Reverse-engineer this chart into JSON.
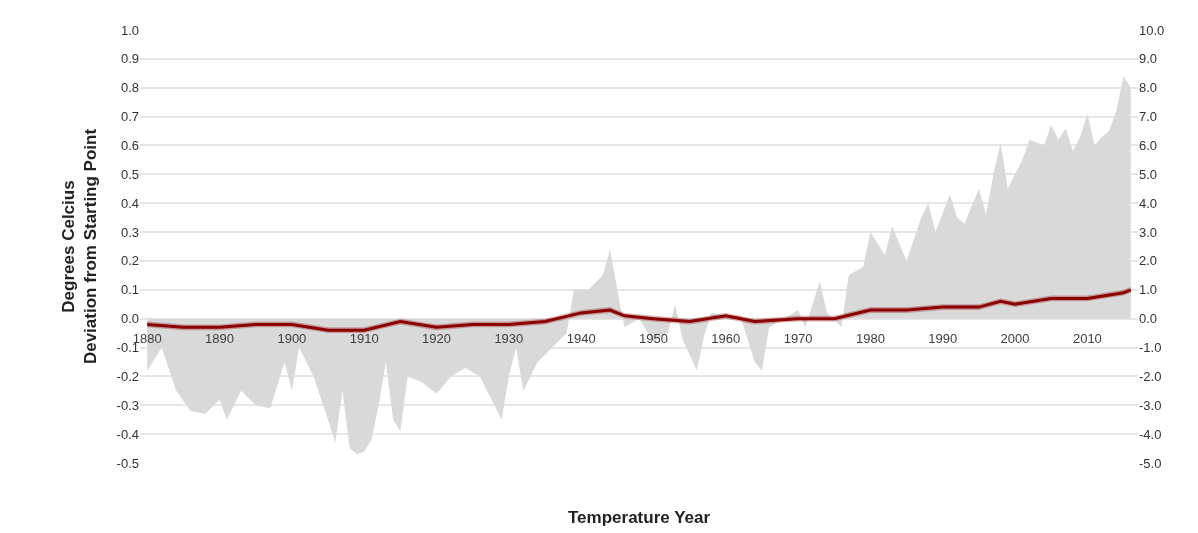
{
  "chart_data": {
    "type": "line",
    "xlabel": "Temperature Year",
    "ylabel": "Degrees Celcius\nDeviation from Starting Point",
    "xlim": [
      1879,
      2017
    ],
    "xticks": [
      1880,
      1890,
      1900,
      1910,
      1920,
      1930,
      1940,
      1950,
      1960,
      1970,
      1980,
      1990,
      2000,
      2010
    ],
    "ylim": [
      -0.5,
      1.0
    ],
    "yticks": [
      {
        "value": -0.5,
        "label": "-0.5"
      },
      {
        "value": -0.4,
        "label": "-0.4"
      },
      {
        "value": -0.3,
        "label": "-0.3"
      },
      {
        "value": -0.2,
        "label": "-0.2"
      },
      {
        "value": -0.1,
        "label": "-0.1"
      },
      {
        "value": 0,
        "label": "0.0"
      },
      {
        "value": 0.1,
        "label": "0.1"
      },
      {
        "value": 0.2,
        "label": "0.2"
      },
      {
        "value": 0.3,
        "label": "0.3"
      },
      {
        "value": 0.4,
        "label": "0.4"
      },
      {
        "value": 0.5,
        "label": "0.5"
      },
      {
        "value": 0.6,
        "label": "0.6"
      },
      {
        "value": 0.7,
        "label": "0.7"
      },
      {
        "value": 0.8,
        "label": "0.8"
      },
      {
        "value": 0.9,
        "label": "0.9"
      },
      {
        "value": 1.0,
        "label": "1.0"
      }
    ],
    "y2lim": [
      -5,
      10
    ],
    "y2ticks": [
      {
        "value": -5,
        "label": "-5.0"
      },
      {
        "value": -4,
        "label": "-4.0"
      },
      {
        "value": -3,
        "label": "-3.0"
      },
      {
        "value": -2,
        "label": "-2.0"
      },
      {
        "value": -1,
        "label": "-1.0"
      },
      {
        "value": 0,
        "label": "0.0"
      },
      {
        "value": 1,
        "label": "1.0"
      },
      {
        "value": 2,
        "label": "2.0"
      },
      {
        "value": 3,
        "label": "3.0"
      },
      {
        "value": 4,
        "label": "4.0"
      },
      {
        "value": 5,
        "label": "5.0"
      },
      {
        "value": 6,
        "label": "6.0"
      },
      {
        "value": 7,
        "label": "7.0"
      },
      {
        "value": 8,
        "label": "8.0"
      },
      {
        "value": 9,
        "label": "9.0"
      },
      {
        "value": 10,
        "label": "10.0"
      }
    ],
    "grid": "y",
    "marker": "none",
    "line_style": "solid",
    "series": [
      {
        "type": "area",
        "axis": "y2",
        "color": "#d9d9d9",
        "x": [
          1880,
          1882,
          1884,
          1886,
          1888,
          1890,
          1891,
          1893,
          1895,
          1897,
          1899,
          1900,
          1901,
          1903,
          1905,
          1906,
          1907,
          1908,
          1909,
          1910,
          1911,
          1912,
          1913,
          1914,
          1915,
          1916,
          1918,
          1920,
          1922,
          1924,
          1926,
          1928,
          1929,
          1930,
          1931,
          1932,
          1934,
          1936,
          1938,
          1939,
          1941,
          1943,
          1944,
          1945,
          1946,
          1948,
          1950,
          1952,
          1953,
          1954,
          1956,
          1957,
          1958,
          1960,
          1962,
          1964,
          1965,
          1966,
          1968,
          1970,
          1971,
          1973,
          1974,
          1976,
          1977,
          1979,
          1980,
          1982,
          1983,
          1985,
          1987,
          1988,
          1989,
          1991,
          1992,
          1993,
          1995,
          1996,
          1997,
          1998,
          1999,
          2001,
          2002,
          2004,
          2005,
          2006,
          2007,
          2008,
          2009,
          2010,
          2011,
          2012,
          2013,
          2014,
          2015,
          2016
        ],
        "values": [
          -1.8,
          -1.0,
          -2.5,
          -3.2,
          -3.3,
          -2.8,
          -3.5,
          -2.5,
          -3.0,
          -3.1,
          -1.5,
          -2.5,
          -1.0,
          -2.0,
          -3.5,
          -4.3,
          -2.5,
          -4.5,
          -4.7,
          -4.6,
          -4.2,
          -3.0,
          -1.5,
          -3.5,
          -3.9,
          -2.0,
          -2.2,
          -2.6,
          -2.0,
          -1.7,
          -2.0,
          -3.0,
          -3.5,
          -2.0,
          -1.0,
          -2.5,
          -1.5,
          -1.0,
          -0.5,
          1.0,
          1.0,
          1.5,
          2.4,
          1.0,
          -0.3,
          0.0,
          -0.8,
          -0.5,
          0.5,
          -0.7,
          -1.8,
          -0.6,
          0.2,
          0.1,
          0.1,
          -1.5,
          -1.8,
          -0.3,
          0.0,
          0.3,
          -0.3,
          1.3,
          0.2,
          -0.3,
          1.5,
          1.8,
          3.0,
          2.2,
          3.2,
          2.0,
          3.5,
          4.0,
          3.0,
          4.3,
          3.5,
          3.3,
          4.5,
          3.6,
          5.0,
          6.1,
          4.5,
          5.5,
          6.2,
          6.0,
          6.7,
          6.2,
          6.6,
          5.8,
          6.3,
          7.1,
          6.0,
          6.3,
          6.5,
          7.2,
          8.4,
          8.0
        ]
      },
      {
        "color": "#8b0000",
        "x": [
          1880,
          1885,
          1890,
          1895,
          1900,
          1905,
          1910,
          1915,
          1920,
          1925,
          1930,
          1935,
          1940,
          1944,
          1946,
          1950,
          1955,
          1960,
          1964,
          1970,
          1975,
          1980,
          1985,
          1990,
          1995,
          1998,
          2000,
          2005,
          2010,
          2015,
          2016
        ],
        "values": [
          -0.02,
          -0.03,
          -0.03,
          -0.02,
          -0.02,
          -0.04,
          -0.04,
          -0.01,
          -0.03,
          -0.02,
          -0.02,
          -0.01,
          0.02,
          0.03,
          0.01,
          0.0,
          -0.01,
          0.01,
          -0.01,
          0.0,
          0.0,
          0.03,
          0.03,
          0.04,
          0.04,
          0.06,
          0.05,
          0.07,
          0.07,
          0.09,
          0.1
        ],
        "lower": [
          -0.03,
          -0.04,
          -0.04,
          -0.03,
          -0.03,
          -0.05,
          -0.05,
          -0.02,
          -0.04,
          -0.03,
          -0.03,
          -0.02,
          0.01,
          0.02,
          0.0,
          -0.01,
          -0.02,
          0.0,
          -0.02,
          -0.01,
          -0.01,
          0.02,
          0.02,
          0.03,
          0.03,
          0.05,
          0.04,
          0.06,
          0.06,
          0.08,
          0.09
        ],
        "upper": [
          -0.01,
          -0.02,
          -0.02,
          -0.01,
          -0.01,
          -0.03,
          -0.03,
          0.0,
          -0.02,
          -0.01,
          -0.01,
          0.0,
          0.03,
          0.04,
          0.02,
          0.01,
          0.0,
          0.02,
          0.0,
          0.01,
          0.01,
          0.04,
          0.04,
          0.05,
          0.05,
          0.07,
          0.06,
          0.08,
          0.08,
          0.1,
          0.11
        ]
      }
    ]
  }
}
